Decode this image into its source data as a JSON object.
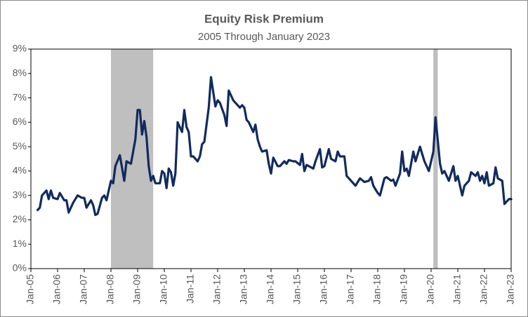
{
  "chart_data": {
    "type": "line",
    "title": "Equity Risk Premium",
    "subtitle": "2005 Through January 2023",
    "xlim": [
      "2005-01",
      "2023-01"
    ],
    "xticks": [
      {
        "value": "2005-01",
        "label": "Jan-05"
      },
      {
        "value": "2006-01",
        "label": "Jan-06"
      },
      {
        "value": "2007-01",
        "label": "Jan-07"
      },
      {
        "value": "2008-01",
        "label": "Jan-08"
      },
      {
        "value": "2009-01",
        "label": "Jan-09"
      },
      {
        "value": "2010-01",
        "label": "Jan-10"
      },
      {
        "value": "2011-01",
        "label": "Jan-11"
      },
      {
        "value": "2012-01",
        "label": "Jan-12"
      },
      {
        "value": "2013-01",
        "label": "Jan-13"
      },
      {
        "value": "2014-01",
        "label": "Jan-14"
      },
      {
        "value": "2015-01",
        "label": "Jan-15"
      },
      {
        "value": "2016-01",
        "label": "Jan-16"
      },
      {
        "value": "2017-01",
        "label": "Jan-17"
      },
      {
        "value": "2018-01",
        "label": "Jan-18"
      },
      {
        "value": "2019-01",
        "label": "Jan-19"
      },
      {
        "value": "2020-01",
        "label": "Jan-20"
      },
      {
        "value": "2021-01",
        "label": "Jan-21"
      },
      {
        "value": "2022-01",
        "label": "Jan-22"
      },
      {
        "value": "2023-01",
        "label": "Jan-23"
      }
    ],
    "ylim": [
      0,
      9
    ],
    "yticks": [
      {
        "value": 0,
        "label": "0%"
      },
      {
        "value": 1,
        "label": "1%"
      },
      {
        "value": 2,
        "label": "2%"
      },
      {
        "value": 3,
        "label": "3%"
      },
      {
        "value": 4,
        "label": "4%"
      },
      {
        "value": 5,
        "label": "5%"
      },
      {
        "value": 6,
        "label": "6%"
      },
      {
        "value": 7,
        "label": "7%"
      },
      {
        "value": 8,
        "label": "8%"
      },
      {
        "value": 9,
        "label": "9%"
      }
    ],
    "grid": false,
    "shaded_periods": [
      [
        "2008-01",
        "2009-08"
      ],
      [
        "2020-02",
        "2020-04"
      ]
    ],
    "shade_color": "#bfbfbf",
    "x": [
      "2005-04",
      "2005-05",
      "2005-06",
      "2005-08",
      "2005-09",
      "2005-10",
      "2005-11",
      "2006-01",
      "2006-02",
      "2006-04",
      "2006-05",
      "2006-06",
      "2006-08",
      "2006-10",
      "2006-12",
      "2007-01",
      "2007-02",
      "2007-04",
      "2007-05",
      "2007-06",
      "2007-07",
      "2007-09",
      "2007-10",
      "2007-11",
      "2008-01",
      "2008-02",
      "2008-03",
      "2008-05",
      "2008-07",
      "2008-08",
      "2008-10",
      "2008-12",
      "2009-01",
      "2009-02",
      "2009-03",
      "2009-04",
      "2009-05",
      "2009-06",
      "2009-07",
      "2009-08",
      "2009-09",
      "2009-11",
      "2009-12",
      "2010-01",
      "2010-02",
      "2010-03",
      "2010-04",
      "2010-05",
      "2010-06",
      "2010-07",
      "2010-09",
      "2010-10",
      "2010-11",
      "2010-12",
      "2011-01",
      "2011-02",
      "2011-04",
      "2011-05",
      "2011-06",
      "2011-07",
      "2011-09",
      "2011-10",
      "2011-12",
      "2012-01",
      "2012-02",
      "2012-04",
      "2012-05",
      "2012-06",
      "2012-08",
      "2012-09",
      "2012-11",
      "2012-12",
      "2013-01",
      "2013-02",
      "2013-03",
      "2013-05",
      "2013-06",
      "2013-07",
      "2013-08",
      "2013-09",
      "2013-11",
      "2013-12",
      "2014-01",
      "2014-02",
      "2014-04",
      "2014-05",
      "2014-07",
      "2014-08",
      "2014-09",
      "2014-11",
      "2014-12",
      "2015-02",
      "2015-03",
      "2015-04",
      "2015-05",
      "2015-06",
      "2015-08",
      "2015-09",
      "2015-11",
      "2015-12",
      "2016-01",
      "2016-03",
      "2016-04",
      "2016-06",
      "2016-07",
      "2016-08",
      "2016-10",
      "2016-11",
      "2017-01",
      "2017-03",
      "2017-05",
      "2017-07",
      "2017-09",
      "2017-10",
      "2017-11",
      "2017-12",
      "2018-01",
      "2018-02",
      "2018-04",
      "2018-05",
      "2018-07",
      "2018-08",
      "2018-09",
      "2018-11",
      "2018-12",
      "2019-01",
      "2019-02",
      "2019-03",
      "2019-05",
      "2019-06",
      "2019-08",
      "2019-09",
      "2019-10",
      "2019-12",
      "2020-02",
      "2020-03",
      "2020-05",
      "2020-06",
      "2020-07",
      "2020-09",
      "2020-11",
      "2020-12",
      "2021-01",
      "2021-03",
      "2021-04",
      "2021-06",
      "2021-07",
      "2021-09",
      "2021-10",
      "2021-11",
      "2021-12",
      "2022-01",
      "2022-02",
      "2022-03",
      "2022-05",
      "2022-06",
      "2022-07",
      "2022-09",
      "2022-10",
      "2022-12",
      "2023-01"
    ],
    "series": [
      {
        "name": "Equity Risk Premium",
        "color": "#112b5e",
        "values": [
          2.4,
          2.5,
          3.0,
          3.2,
          2.85,
          3.2,
          2.9,
          2.85,
          3.1,
          2.8,
          2.8,
          2.3,
          2.7,
          3.0,
          2.9,
          2.9,
          2.5,
          2.8,
          2.6,
          2.2,
          2.25,
          2.9,
          3.0,
          2.8,
          3.6,
          3.5,
          4.2,
          4.65,
          3.6,
          4.4,
          4.3,
          5.3,
          6.5,
          6.5,
          5.5,
          6.05,
          5.4,
          4.2,
          3.6,
          3.8,
          3.5,
          3.5,
          4.0,
          3.9,
          3.3,
          4.1,
          3.95,
          3.4,
          3.9,
          6.0,
          5.6,
          6.5,
          5.8,
          5.6,
          4.6,
          4.6,
          4.4,
          4.6,
          5.1,
          5.2,
          6.6,
          7.85,
          6.65,
          6.9,
          6.8,
          6.3,
          5.85,
          7.3,
          6.9,
          6.8,
          6.6,
          6.7,
          6.6,
          6.1,
          6.0,
          5.6,
          5.9,
          5.3,
          5.0,
          4.8,
          4.85,
          4.3,
          3.9,
          4.55,
          4.2,
          4.2,
          4.4,
          4.3,
          4.45,
          4.4,
          4.4,
          4.25,
          4.7,
          4.0,
          4.25,
          4.2,
          4.1,
          4.4,
          4.9,
          4.15,
          4.2,
          4.9,
          4.5,
          4.4,
          4.8,
          4.6,
          4.6,
          3.8,
          3.6,
          3.4,
          3.7,
          3.55,
          3.6,
          3.75,
          3.4,
          3.25,
          3.1,
          3.0,
          3.7,
          3.75,
          3.6,
          3.65,
          3.4,
          3.9,
          4.8,
          4.0,
          4.1,
          3.8,
          4.8,
          4.4,
          5.0,
          4.7,
          4.4,
          4.0,
          4.8,
          6.2,
          4.3,
          3.9,
          4.0,
          3.6,
          4.2,
          3.6,
          3.8,
          3.0,
          3.4,
          3.6,
          3.95,
          3.8,
          3.95,
          3.6,
          3.8,
          3.5,
          3.95,
          3.4,
          3.5,
          4.15,
          3.7,
          3.6,
          2.65,
          2.85,
          2.85
        ]
      }
    ]
  }
}
